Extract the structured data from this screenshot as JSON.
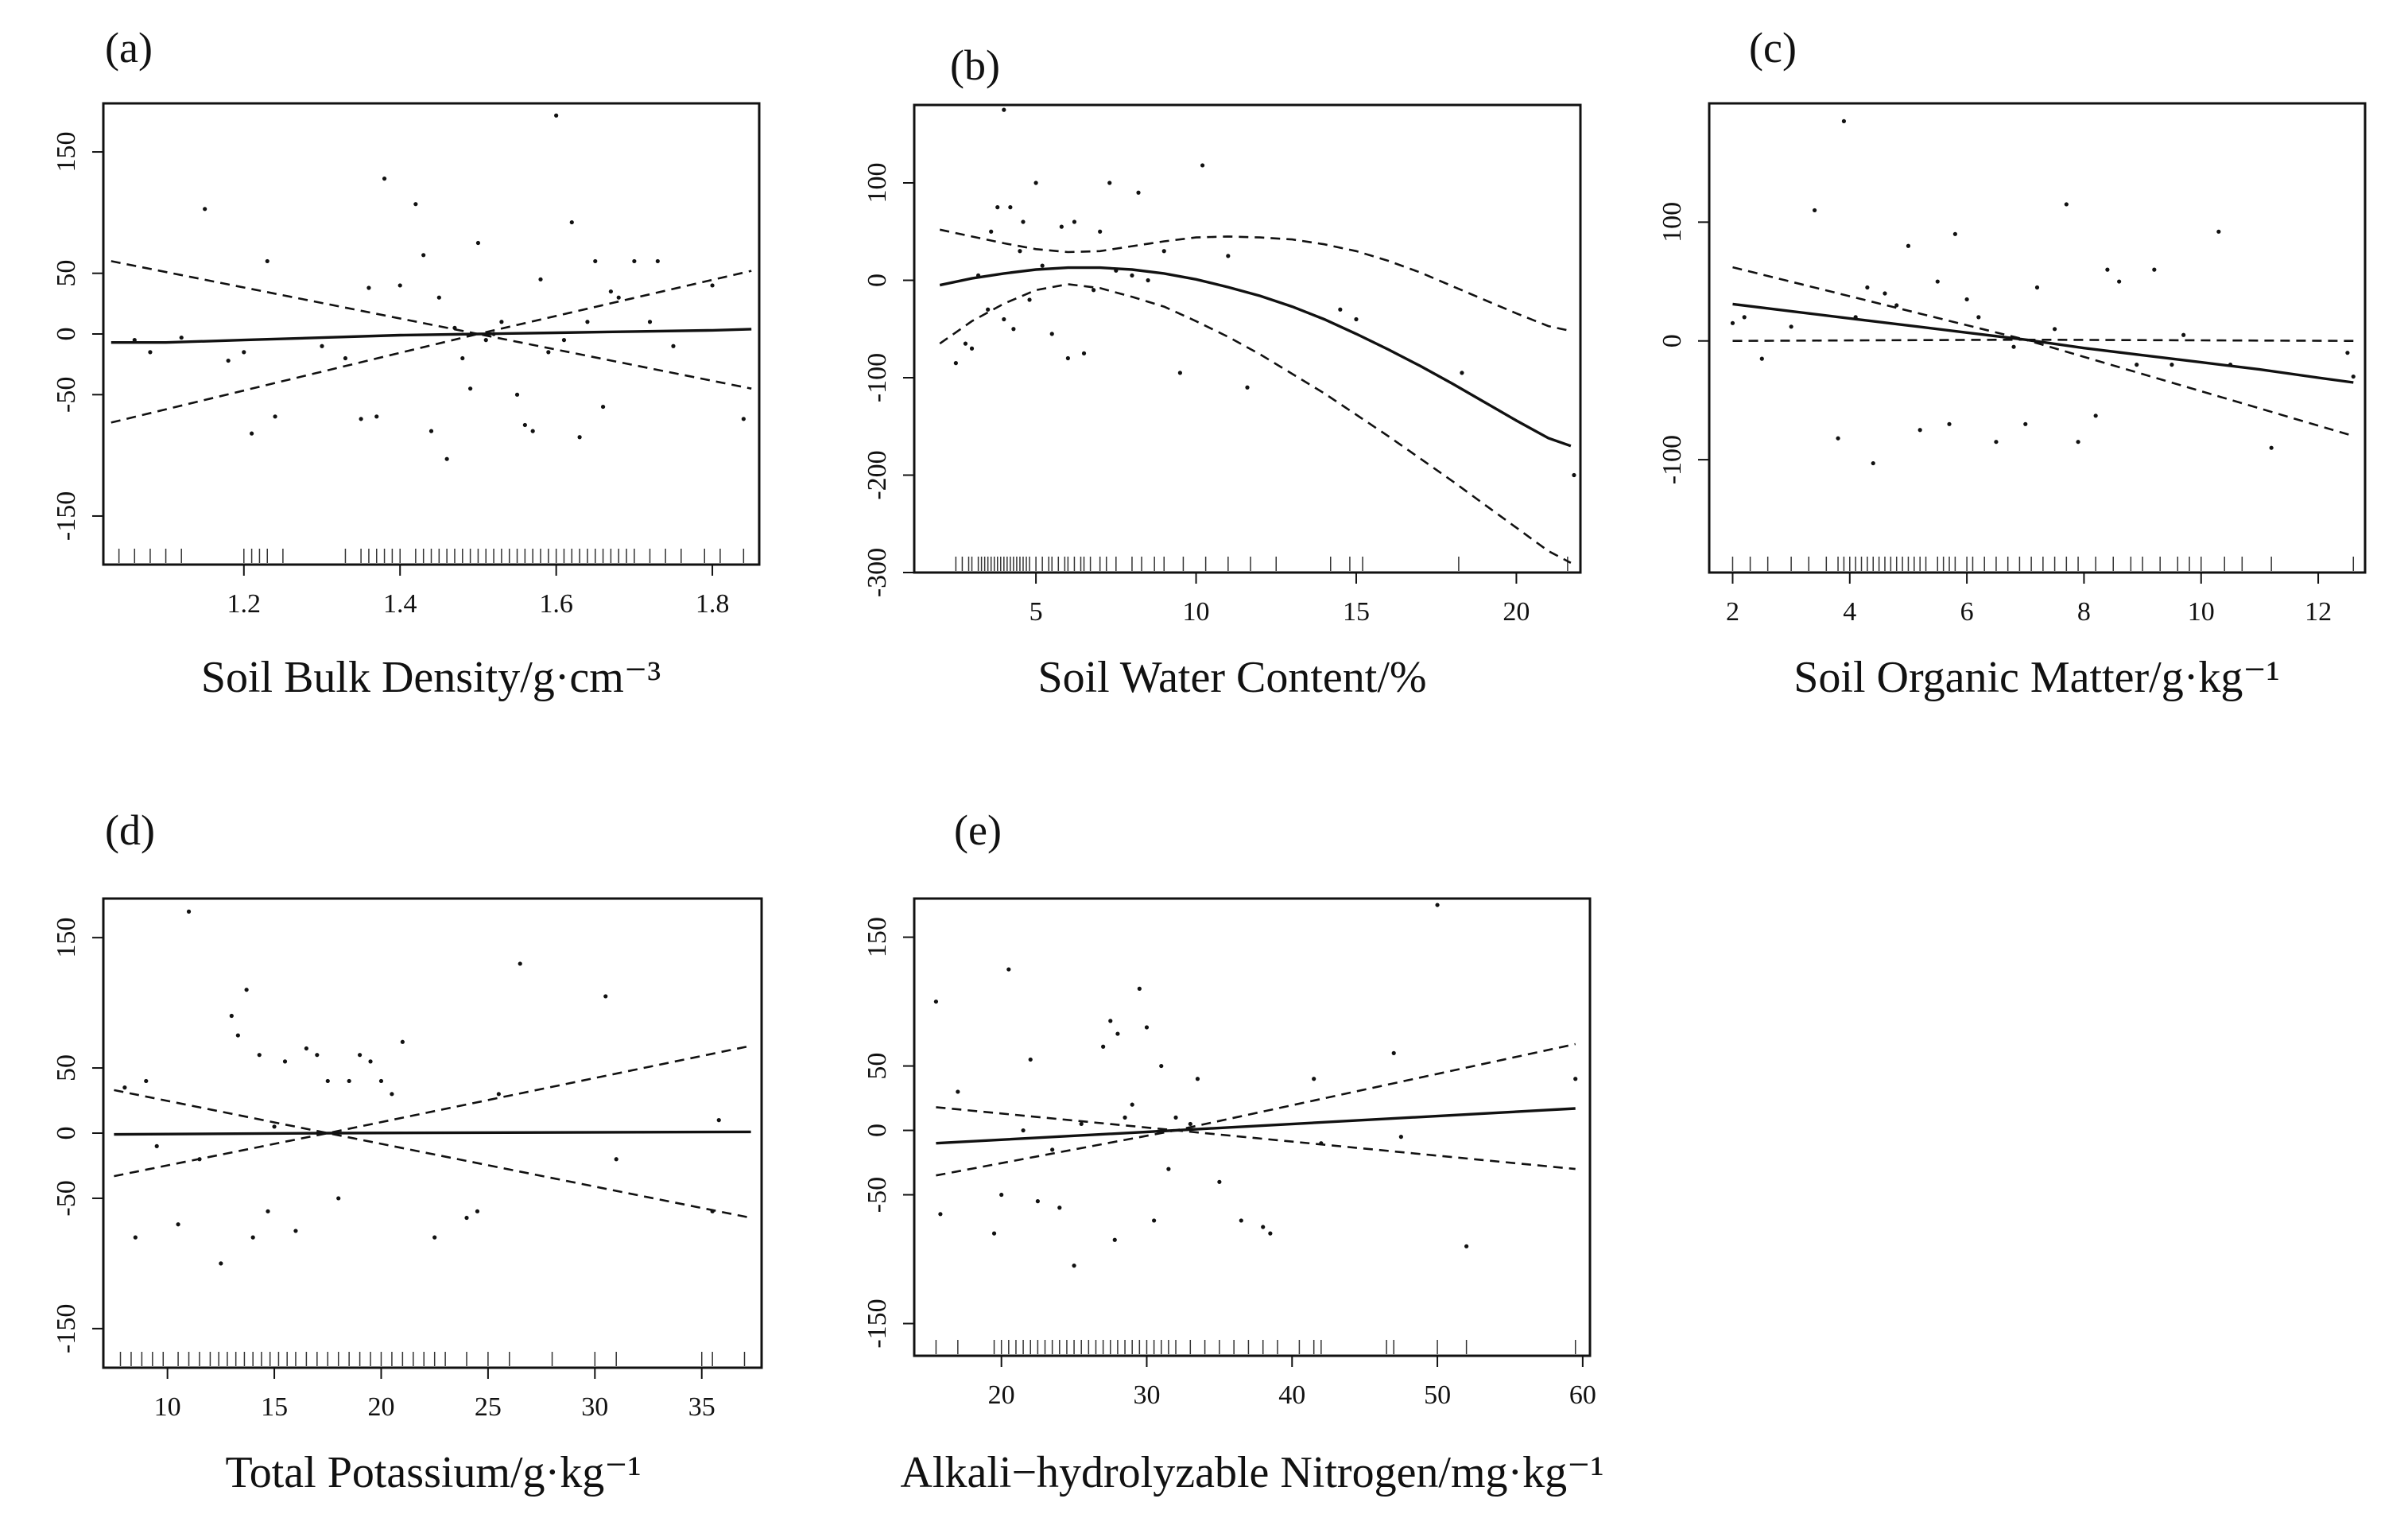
{
  "figure": {
    "panels_count": 5
  },
  "chart_data": [
    {
      "type": "scatter",
      "panel": "(a)",
      "title": "(a)",
      "xlabel": "Soil Bulk Density/g·cm⁻³",
      "ylabel": "",
      "xlim": [
        1.02,
        1.86
      ],
      "ylim": [
        -190,
        190
      ],
      "x_ticks": [
        1.2,
        1.4,
        1.6,
        1.8
      ],
      "x_tick_labels": [
        "1.2",
        "1.4",
        "1.6",
        "1.8"
      ],
      "y_ticks": [
        150,
        50,
        0,
        -50,
        -150
      ],
      "y_tick_labels": [
        "150",
        "50",
        "0",
        "-50",
        "-150"
      ],
      "fit": {
        "x": [
          1.03,
          1.1,
          1.2,
          1.3,
          1.4,
          1.5,
          1.6,
          1.7,
          1.8,
          1.85
        ],
        "y": [
          -7,
          -7,
          -5,
          -3,
          -1,
          0,
          1,
          2,
          3,
          4
        ]
      },
      "upper": {
        "x": [
          1.03,
          1.5,
          1.85
        ],
        "y": [
          60,
          0,
          52
        ]
      },
      "lower": {
        "x": [
          1.03,
          1.5,
          1.85
        ],
        "y": [
          -73,
          0,
          -45
        ]
      },
      "points": {
        "x": [
          1.06,
          1.08,
          1.12,
          1.15,
          1.18,
          1.2,
          1.21,
          1.23,
          1.24,
          1.3,
          1.33,
          1.35,
          1.36,
          1.37,
          1.38,
          1.4,
          1.42,
          1.43,
          1.44,
          1.45,
          1.46,
          1.47,
          1.48,
          1.49,
          1.5,
          1.51,
          1.52,
          1.53,
          1.55,
          1.56,
          1.57,
          1.58,
          1.59,
          1.6,
          1.61,
          1.62,
          1.63,
          1.64,
          1.65,
          1.66,
          1.67,
          1.68,
          1.7,
          1.72,
          1.73,
          1.75,
          1.8,
          1.84
        ],
        "y": [
          -5,
          -15,
          -3,
          103,
          -22,
          -15,
          -82,
          60,
          -68,
          -10,
          -20,
          -70,
          38,
          -68,
          128,
          40,
          107,
          65,
          -80,
          30,
          -103,
          5,
          -20,
          -45,
          75,
          -5,
          0,
          10,
          -50,
          -75,
          -80,
          45,
          -15,
          180,
          -5,
          92,
          -85,
          10,
          60,
          -60,
          35,
          30,
          60,
          10,
          60,
          -10,
          40,
          -70
        ]
      },
      "rug": [
        1.04,
        1.06,
        1.08,
        1.1,
        1.12,
        1.2,
        1.21,
        1.22,
        1.23,
        1.25,
        1.33,
        1.35,
        1.36,
        1.37,
        1.38,
        1.39,
        1.4,
        1.42,
        1.43,
        1.44,
        1.45,
        1.46,
        1.47,
        1.48,
        1.49,
        1.5,
        1.51,
        1.52,
        1.53,
        1.54,
        1.55,
        1.56,
        1.57,
        1.58,
        1.59,
        1.6,
        1.61,
        1.62,
        1.63,
        1.64,
        1.65,
        1.66,
        1.67,
        1.68,
        1.69,
        1.7,
        1.72,
        1.74,
        1.76,
        1.79,
        1.81,
        1.84
      ]
    },
    {
      "type": "scatter",
      "panel": "(b)",
      "title": "(b)",
      "xlabel": "Soil Water Content/%",
      "ylabel": "",
      "xlim": [
        1.2,
        22.0
      ],
      "ylim": [
        -300,
        180
      ],
      "x_ticks": [
        5,
        10,
        15,
        20
      ],
      "x_tick_labels": [
        "5",
        "10",
        "15",
        "20"
      ],
      "y_ticks": [
        100,
        0,
        -100,
        -200,
        -300
      ],
      "y_tick_labels": [
        "100",
        "0",
        "-100",
        "-200",
        "-300"
      ],
      "fit": {
        "x": [
          2,
          3,
          4,
          5,
          6,
          7,
          8,
          9,
          10,
          11,
          12,
          13,
          14,
          15,
          16,
          17,
          18,
          19,
          20,
          21,
          21.7
        ],
        "y": [
          -5,
          2,
          7,
          11,
          13,
          13,
          11,
          7,
          1,
          -7,
          -16,
          -27,
          -40,
          -55,
          -71,
          -88,
          -106,
          -125,
          -144,
          -162,
          -170
        ]
      },
      "upper": {
        "x": [
          2,
          3,
          4,
          5,
          6,
          7,
          8,
          9,
          10,
          11,
          12,
          13,
          14,
          15,
          16,
          17,
          18,
          19,
          20,
          21,
          21.7
        ],
        "y": [
          52,
          45,
          38,
          32,
          29,
          30,
          35,
          40,
          44,
          45,
          44,
          42,
          37,
          30,
          20,
          8,
          -6,
          -20,
          -34,
          -47,
          -52
        ]
      },
      "lower": {
        "x": [
          2,
          3,
          4,
          5,
          6,
          7,
          8,
          9,
          10,
          11,
          12,
          13,
          14,
          15,
          16,
          17,
          18,
          19,
          20,
          21,
          21.7
        ],
        "y": [
          -65,
          -42,
          -24,
          -10,
          -4,
          -8,
          -17,
          -27,
          -42,
          -58,
          -76,
          -96,
          -116,
          -138,
          -160,
          -183,
          -206,
          -230,
          -254,
          -278,
          -290
        ]
      },
      "points": {
        "x": [
          2.5,
          2.8,
          3.0,
          3.2,
          3.5,
          3.6,
          3.8,
          4.0,
          4.0,
          4.2,
          4.3,
          4.5,
          4.6,
          4.8,
          5.0,
          5.2,
          5.5,
          5.8,
          6.0,
          6.2,
          6.5,
          6.8,
          7.0,
          7.3,
          7.5,
          8.0,
          8.2,
          8.5,
          9.0,
          9.5,
          10.2,
          11.0,
          11.6,
          14.5,
          15.0,
          18.3,
          21.8
        ],
        "y": [
          -85,
          -65,
          -70,
          5,
          -30,
          50,
          75,
          175,
          -40,
          75,
          -50,
          30,
          60,
          -20,
          100,
          15,
          -55,
          55,
          -80,
          60,
          -75,
          -10,
          50,
          100,
          10,
          5,
          90,
          0,
          30,
          -95,
          118,
          25,
          -110,
          -30,
          -40,
          -95,
          -200
        ]
      },
      "rug": [
        2.5,
        2.7,
        2.9,
        3.0,
        3.2,
        3.3,
        3.4,
        3.5,
        3.6,
        3.7,
        3.8,
        3.9,
        4.0,
        4.1,
        4.2,
        4.3,
        4.4,
        4.5,
        4.6,
        4.7,
        4.8,
        5.0,
        5.2,
        5.4,
        5.5,
        5.7,
        5.9,
        6.0,
        6.2,
        6.4,
        6.5,
        6.7,
        7.0,
        7.2,
        7.5,
        8.0,
        8.3,
        8.7,
        9.0,
        9.6,
        10.3,
        11.0,
        11.7,
        12.5,
        14.2,
        14.8,
        15.2,
        18.2,
        21.6
      ]
    },
    {
      "type": "scatter",
      "panel": "(c)",
      "title": "(c)",
      "xlabel": "Soil Organic Matter/g·kg⁻¹",
      "ylabel": "",
      "xlim": [
        1.6,
        12.8
      ],
      "ylim": [
        -195,
        200
      ],
      "x_ticks": [
        2,
        4,
        6,
        8,
        10,
        12
      ],
      "x_tick_labels": [
        "2",
        "4",
        "6",
        "8",
        "10",
        "12"
      ],
      "y_ticks": [
        100,
        0,
        -100
      ],
      "y_tick_labels": [
        "100",
        "0",
        "-100"
      ],
      "fit": {
        "x": [
          2,
          3,
          4,
          5,
          6,
          7,
          8,
          9,
          10,
          11,
          12,
          12.6
        ],
        "y": [
          31,
          25,
          19,
          13,
          7,
          1,
          -6,
          -12,
          -18,
          -24,
          -31,
          -35
        ]
      },
      "upper": {
        "x": [
          2,
          7,
          12.6
        ],
        "y": [
          62,
          1,
          0
        ]
      },
      "lower": {
        "x": [
          2,
          7,
          12.6
        ],
        "y": [
          0,
          1,
          -80
        ]
      },
      "points": {
        "x": [
          2.0,
          2.2,
          2.5,
          3.0,
          3.4,
          3.8,
          3.9,
          4.1,
          4.3,
          4.4,
          4.6,
          4.8,
          5.0,
          5.2,
          5.5,
          5.7,
          5.8,
          6.0,
          6.2,
          6.5,
          6.8,
          7.0,
          7.2,
          7.5,
          7.7,
          7.9,
          8.2,
          8.4,
          8.6,
          8.9,
          9.2,
          9.5,
          9.7,
          10.3,
          10.5,
          11.2,
          12.5,
          12.6
        ],
        "y": [
          15,
          20,
          -15,
          12,
          110,
          -82,
          185,
          20,
          45,
          -103,
          40,
          30,
          80,
          -75,
          50,
          -70,
          90,
          35,
          20,
          -85,
          -5,
          -70,
          45,
          10,
          115,
          -85,
          -63,
          60,
          50,
          -20,
          60,
          -20,
          5,
          92,
          -20,
          -90,
          -10,
          -30
        ]
      },
      "rug": [
        2.0,
        2.3,
        2.6,
        3.0,
        3.3,
        3.6,
        3.8,
        3.9,
        4.0,
        4.1,
        4.2,
        4.3,
        4.4,
        4.5,
        4.6,
        4.7,
        4.8,
        4.9,
        5.0,
        5.1,
        5.2,
        5.3,
        5.5,
        5.6,
        5.7,
        5.8,
        6.0,
        6.1,
        6.3,
        6.5,
        6.7,
        6.9,
        7.1,
        7.3,
        7.5,
        7.7,
        7.9,
        8.2,
        8.5,
        8.8,
        9.0,
        9.3,
        9.6,
        9.8,
        10.0,
        10.4,
        10.7,
        11.2,
        12.6
      ]
    },
    {
      "type": "scatter",
      "panel": "(d)",
      "title": "(d)",
      "xlabel": "Total Potassium/g·kg⁻¹",
      "ylabel": "",
      "xlim": [
        7.0,
        37.8
      ],
      "ylim": [
        -180,
        180
      ],
      "x_ticks": [
        10,
        15,
        20,
        25,
        30,
        35
      ],
      "x_tick_labels": [
        "10",
        "15",
        "20",
        "25",
        "30",
        "35"
      ],
      "y_ticks": [
        150,
        50,
        0,
        -50,
        -150
      ],
      "y_tick_labels": [
        "150",
        "50",
        "0",
        "-50",
        "-150"
      ],
      "fit": {
        "x": [
          7.5,
          17.5,
          37.3
        ],
        "y": [
          -1,
          0,
          1
        ]
      },
      "upper": {
        "x": [
          7.5,
          17.5,
          37.3
        ],
        "y": [
          33,
          0,
          67
        ]
      },
      "lower": {
        "x": [
          7.5,
          17.5,
          37.3
        ],
        "y": [
          -33,
          0,
          -65
        ]
      },
      "points": {
        "x": [
          8.0,
          8.5,
          9.0,
          9.5,
          10.5,
          11.0,
          11.5,
          12.5,
          13.0,
          13.3,
          13.7,
          14.0,
          14.3,
          14.7,
          15.0,
          15.5,
          16.0,
          16.5,
          17.0,
          17.5,
          18.0,
          18.5,
          19.0,
          19.5,
          20.0,
          20.5,
          21.0,
          22.5,
          24.0,
          24.5,
          25.5,
          26.5,
          30.5,
          31.0,
          35.5,
          35.8
        ],
        "y": [
          35,
          -80,
          40,
          -10,
          -70,
          170,
          -20,
          -100,
          90,
          75,
          110,
          -80,
          60,
          -60,
          5,
          55,
          -75,
          65,
          60,
          40,
          -50,
          40,
          60,
          55,
          40,
          30,
          70,
          -80,
          -65,
          -60,
          30,
          130,
          105,
          -20,
          -60,
          10
        ]
      },
      "rug": [
        7.8,
        8.3,
        8.8,
        9.3,
        9.8,
        10.5,
        11.0,
        11.5,
        12.0,
        12.4,
        12.8,
        13.2,
        13.6,
        14.0,
        14.4,
        14.8,
        15.2,
        15.6,
        16.0,
        16.5,
        17.0,
        17.5,
        18.0,
        18.5,
        19.0,
        19.5,
        20.0,
        20.5,
        21.0,
        21.5,
        22.0,
        22.5,
        23.0,
        24.0,
        25.0,
        26.0,
        28.0,
        30.0,
        31.0,
        35.0,
        35.5,
        37.0
      ]
    },
    {
      "type": "scatter",
      "panel": "(e)",
      "title": "(e)",
      "xlabel": "Alkali−hydrolyzable Nitrogen/mg·kg⁻¹",
      "ylabel": "",
      "xlim": [
        14.0,
        60.5
      ],
      "ylim": [
        -175,
        180
      ],
      "x_ticks": [
        20,
        30,
        40,
        50,
        60
      ],
      "x_tick_labels": [
        "20",
        "30",
        "40",
        "50",
        "60"
      ],
      "y_ticks": [
        150,
        50,
        0,
        -50,
        -150
      ],
      "y_tick_labels": [
        "150",
        "50",
        "0",
        "-50",
        "-150"
      ],
      "fit": {
        "x": [
          15.5,
          32,
          59.5
        ],
        "y": [
          -10,
          0,
          17
        ]
      },
      "upper": {
        "x": [
          15.5,
          32,
          59.5
        ],
        "y": [
          -35,
          0,
          67
        ]
      },
      "lower": {
        "x": [
          15.5,
          32,
          59.5
        ],
        "y": [
          18,
          0,
          -30
        ]
      },
      "points": {
        "x": [
          15.5,
          15.8,
          17.0,
          19.5,
          20.0,
          20.5,
          21.5,
          22.0,
          22.5,
          23.5,
          24.0,
          25.0,
          25.5,
          27.0,
          27.5,
          27.8,
          28.0,
          28.5,
          29.0,
          29.5,
          30.0,
          30.5,
          31.0,
          31.5,
          32.0,
          33.0,
          33.5,
          35.0,
          36.5,
          38.0,
          38.5,
          41.5,
          42.0,
          47.0,
          47.5,
          50.0,
          52.0,
          59.5
        ],
        "y": [
          100,
          -65,
          30,
          -80,
          -50,
          125,
          0,
          55,
          -55,
          -15,
          -60,
          -105,
          5,
          65,
          85,
          -85,
          75,
          10,
          20,
          110,
          80,
          -70,
          50,
          -30,
          10,
          5,
          40,
          -40,
          -70,
          -75,
          -80,
          40,
          -10,
          60,
          -5,
          175,
          -90,
          40
        ]
      },
      "rug": [
        15.5,
        17.0,
        19.5,
        20.0,
        20.5,
        21.0,
        21.5,
        22.0,
        22.5,
        23.0,
        23.5,
        24.0,
        24.5,
        25.0,
        25.5,
        26.0,
        26.5,
        27.0,
        27.5,
        28.0,
        28.5,
        29.0,
        29.5,
        30.0,
        30.5,
        31.0,
        31.5,
        32.0,
        33.0,
        34.0,
        35.0,
        36.0,
        37.0,
        38.0,
        39.0,
        40.5,
        41.5,
        42.0,
        46.5,
        47.0,
        50.0,
        52.0,
        59.5
      ]
    }
  ]
}
